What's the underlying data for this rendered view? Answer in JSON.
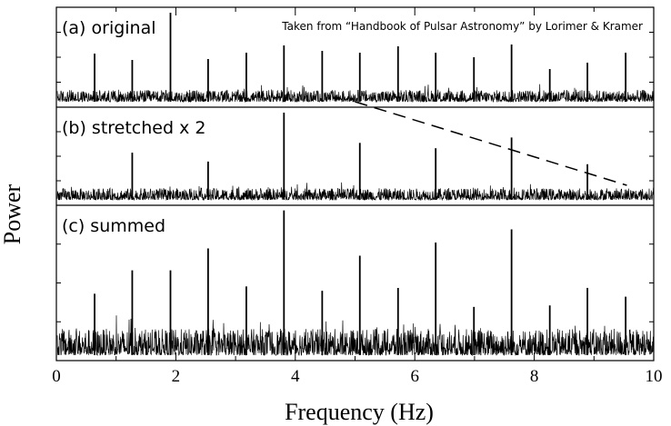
{
  "credit": "Taken from “Handbook of Pulsar Astronomy” by Lorimer & Kramer",
  "chart_data": {
    "type": "line",
    "xlabel": "Frequency (Hz)",
    "ylabel": "Power",
    "xlim": [
      0,
      10
    ],
    "xticks": [
      "0",
      "2",
      "4",
      "6",
      "8",
      "10"
    ],
    "fundamental_hz": 0.635,
    "panels": [
      {
        "label": "(a) original",
        "peaks": [
          {
            "x": 0.64,
            "y": 0.53
          },
          {
            "x": 1.27,
            "y": 0.46
          },
          {
            "x": 1.91,
            "y": 0.98
          },
          {
            "x": 2.54,
            "y": 0.47
          },
          {
            "x": 3.18,
            "y": 0.54
          },
          {
            "x": 3.81,
            "y": 0.62
          },
          {
            "x": 4.45,
            "y": 0.56
          },
          {
            "x": 5.08,
            "y": 0.54
          },
          {
            "x": 5.72,
            "y": 0.61
          },
          {
            "x": 6.35,
            "y": 0.54
          },
          {
            "x": 6.99,
            "y": 0.49
          },
          {
            "x": 7.62,
            "y": 0.63
          },
          {
            "x": 8.26,
            "y": 0.36
          },
          {
            "x": 8.89,
            "y": 0.43
          },
          {
            "x": 9.53,
            "y": 0.54
          }
        ],
        "noise_level": 0.13
      },
      {
        "label": "(b) stretched  x 2",
        "peaks": [
          {
            "x": 1.27,
            "y": 0.53
          },
          {
            "x": 2.54,
            "y": 0.43
          },
          {
            "x": 3.81,
            "y": 0.98
          },
          {
            "x": 5.08,
            "y": 0.64
          },
          {
            "x": 6.35,
            "y": 0.58
          },
          {
            "x": 7.62,
            "y": 0.7
          },
          {
            "x": 8.89,
            "y": 0.4
          }
        ],
        "noise_level": 0.13
      },
      {
        "label": "(c) summed",
        "peaks": [
          {
            "x": 0.64,
            "y": 0.42
          },
          {
            "x": 1.27,
            "y": 0.58
          },
          {
            "x": 1.91,
            "y": 0.58
          },
          {
            "x": 2.54,
            "y": 0.73
          },
          {
            "x": 3.18,
            "y": 0.47
          },
          {
            "x": 3.81,
            "y": 0.99
          },
          {
            "x": 4.45,
            "y": 0.44
          },
          {
            "x": 5.08,
            "y": 0.68
          },
          {
            "x": 5.72,
            "y": 0.46
          },
          {
            "x": 6.35,
            "y": 0.77
          },
          {
            "x": 6.99,
            "y": 0.33
          },
          {
            "x": 7.62,
            "y": 0.86
          },
          {
            "x": 8.26,
            "y": 0.34
          },
          {
            "x": 8.89,
            "y": 0.46
          },
          {
            "x": 9.53,
            "y": 0.4
          }
        ],
        "noise_level": 0.18
      }
    ],
    "annotation": "dashed line linking harmonic at 5.08 Hz in (a) to 9.53 Hz in (b)",
    "annotation_line": {
      "from": {
        "panel": 0,
        "x": 5.0
      },
      "to": {
        "panel": 1,
        "x": 9.55
      }
    },
    "grid": false
  }
}
